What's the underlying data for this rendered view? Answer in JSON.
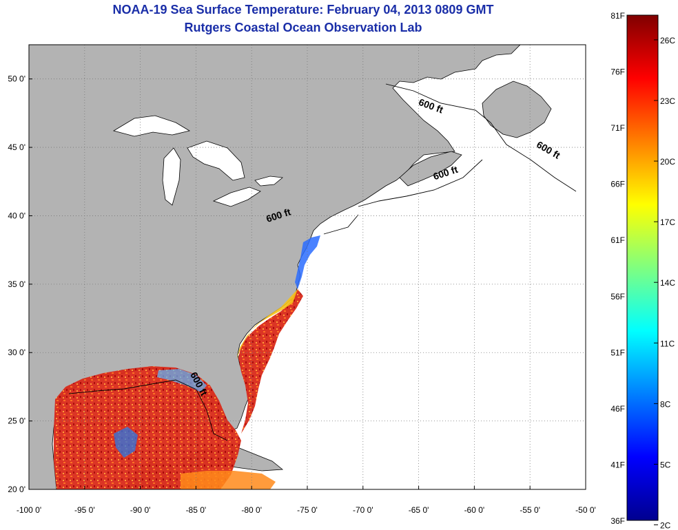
{
  "header": {
    "title": "NOAA-19 Sea Surface Temperature:  February 04, 2013 0809 GMT",
    "subtitle": "Rutgers Coastal Ocean Observation Lab"
  },
  "map": {
    "lon_range": [
      -100,
      -50
    ],
    "lat_range": [
      20,
      52.5
    ],
    "lon_ticks": [
      {
        "value": -100,
        "label": "-100 0'"
      },
      {
        "value": -95,
        "label": "-95 0'"
      },
      {
        "value": -90,
        "label": "-90 0'"
      },
      {
        "value": -85,
        "label": "-85 0'"
      },
      {
        "value": -80,
        "label": "-80 0'"
      },
      {
        "value": -75,
        "label": "-75 0'"
      },
      {
        "value": -70,
        "label": "-70 0'"
      },
      {
        "value": -65,
        "label": "-65 0'"
      },
      {
        "value": -60,
        "label": "-60 0'"
      },
      {
        "value": -55,
        "label": "-55 0'"
      },
      {
        "value": -50,
        "label": "-50 0'"
      }
    ],
    "lat_ticks": [
      {
        "value": 20,
        "label": "20 0'"
      },
      {
        "value": 25,
        "label": "25 0'"
      },
      {
        "value": 30,
        "label": "30 0'"
      },
      {
        "value": 35,
        "label": "35 0'"
      },
      {
        "value": 40,
        "label": "40 0'"
      },
      {
        "value": 45,
        "label": "45 0'"
      },
      {
        "value": 50,
        "label": "50 0'"
      }
    ],
    "grid": "dotted",
    "land_color": "#b3b3b3",
    "contour_labels": [
      {
        "text": "600 ft",
        "lon": -64,
        "lat": 47.8,
        "angle": 20
      },
      {
        "text": "600 ft",
        "lon": -53.5,
        "lat": 44.6,
        "angle": 30
      },
      {
        "text": "600 ft",
        "lon": -62.5,
        "lat": 42.9,
        "angle": -18
      },
      {
        "text": "600 ft",
        "lon": -77.5,
        "lat": 39.8,
        "angle": -18
      },
      {
        "text": "600 ft",
        "lon": -85,
        "lat": 27.6,
        "angle": 62
      }
    ]
  },
  "colorbar": {
    "f_labels": [
      "81F",
      "76F",
      "71F",
      "66F",
      "61F",
      "56F",
      "51F",
      "46F",
      "41F",
      "36F"
    ],
    "c_labels": [
      "26C",
      "23C",
      "20C",
      "17C",
      "14C",
      "11C",
      "8C",
      "5C",
      "2C"
    ],
    "c_values": [
      26,
      23,
      20,
      17,
      14,
      11,
      8,
      5,
      2
    ],
    "range_f": [
      36,
      81
    ],
    "colormap": "jet"
  }
}
